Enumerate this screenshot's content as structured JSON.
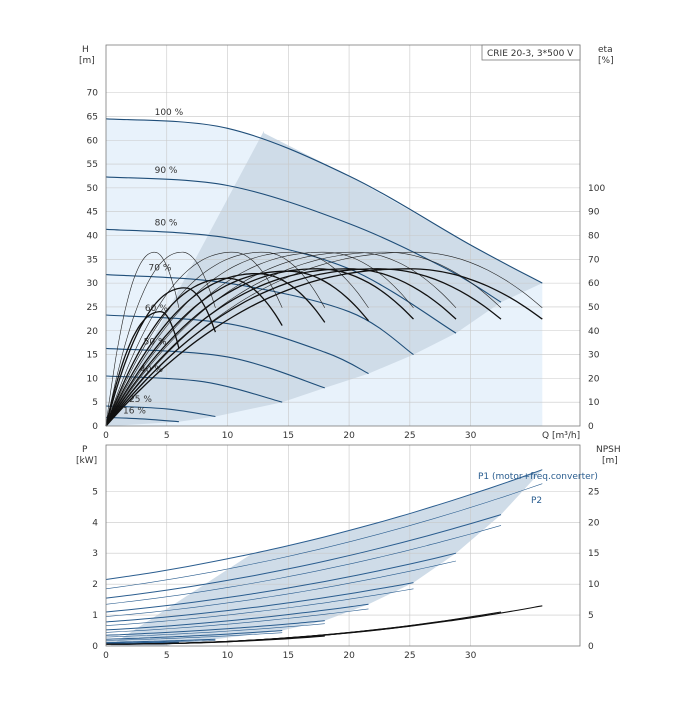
{
  "colors": {
    "curve_dark": "#1f4e79",
    "curve_blue": "#2a5d8f",
    "curve_black": "#111111",
    "region_fill": "#cfdce8",
    "region_light": "#e8f2fb",
    "grid": "#c8c8c8"
  },
  "legend_box": "CRIE 20-3, 3*500 V",
  "chart_data": [
    {
      "type": "line",
      "name": "head-efficiency",
      "ylabel_left": [
        "H",
        "[m]"
      ],
      "ylabel_right": [
        "eta",
        "[%]"
      ],
      "xlabel": "Q [m³/h]",
      "xlim": [
        0,
        39
      ],
      "ylim": [
        0,
        80
      ],
      "xticks": [
        0,
        5,
        10,
        15,
        20,
        25,
        30
      ],
      "yticks_left": [
        0,
        5,
        10,
        15,
        20,
        25,
        30,
        35,
        40,
        45,
        50,
        55,
        60,
        65,
        70
      ],
      "yticks_right": [
        0,
        10,
        20,
        30,
        40,
        50,
        60,
        70,
        80,
        90,
        100
      ],
      "eta_scale": {
        "eta_0_at_H": 0,
        "eta_100_at_H": 50
      },
      "grid": true,
      "head_curves": [
        {
          "label": "100 %",
          "q_max": 35.9,
          "points": [
            [
              0,
              64.5
            ],
            [
              10,
              62.5
            ],
            [
              20,
              52.5
            ],
            [
              30,
              38
            ],
            [
              35.9,
              30
            ]
          ]
        },
        {
          "label": "90 %",
          "q_max": 32.5,
          "points": [
            [
              0,
              52.3
            ],
            [
              10,
              50.5
            ],
            [
              20,
              42.5
            ],
            [
              28,
              33
            ],
            [
              32.5,
              26
            ]
          ]
        },
        {
          "label": "80 %",
          "q_max": 28.8,
          "points": [
            [
              0,
              41.3
            ],
            [
              10,
              39.5
            ],
            [
              20,
              33
            ],
            [
              28.8,
              19.5
            ]
          ]
        },
        {
          "label": "70 %",
          "q_max": 25.3,
          "points": [
            [
              0,
              31.8
            ],
            [
              10,
              30
            ],
            [
              20,
              24
            ],
            [
              25.3,
              15
            ]
          ]
        },
        {
          "label": "60 %",
          "q_max": 21.6,
          "points": [
            [
              0,
              23.3
            ],
            [
              10,
              21.5
            ],
            [
              18,
              15.5
            ],
            [
              21.6,
              11
            ]
          ]
        },
        {
          "label": "50 %",
          "q_max": 18,
          "points": [
            [
              0,
              16.3
            ],
            [
              10,
              14.5
            ],
            [
              18,
              8
            ]
          ]
        },
        {
          "label": "40 %",
          "q_max": 14.5,
          "points": [
            [
              0,
              10.5
            ],
            [
              8,
              9.3
            ],
            [
              14.5,
              5
            ]
          ]
        },
        {
          "label": "25 %",
          "q_max": 9,
          "points": [
            [
              0,
              4.2
            ],
            [
              5,
              3.6
            ],
            [
              9,
              2
            ]
          ]
        },
        {
          "label": "16 %",
          "q_max": 6,
          "points": [
            [
              0,
              1.8
            ],
            [
              3,
              1.5
            ],
            [
              6,
              0.9
            ]
          ]
        }
      ],
      "efficiency_thin_peaks": [
        {
          "q_peak": 4.0,
          "q_end": 6.0,
          "eta_peak": 73
        },
        {
          "q_peak": 6.3,
          "q_end": 9.0,
          "eta_peak": 73
        },
        {
          "q_peak": 10.5,
          "q_end": 14.5,
          "eta_peak": 73
        },
        {
          "q_peak": 13.0,
          "q_end": 18.0,
          "eta_peak": 73
        },
        {
          "q_peak": 15.5,
          "q_end": 21.6,
          "eta_peak": 73
        },
        {
          "q_peak": 18.0,
          "q_end": 25.3,
          "eta_peak": 73
        },
        {
          "q_peak": 20.5,
          "q_end": 28.8,
          "eta_peak": 73
        },
        {
          "q_peak": 23.0,
          "q_end": 32.5,
          "eta_peak": 73
        },
        {
          "q_peak": 25.5,
          "q_end": 35.9,
          "eta_peak": 73
        }
      ],
      "efficiency_bold_peaks": [
        {
          "q_peak": 4.5,
          "q_end": 6.0,
          "eta_peak": 48
        },
        {
          "q_peak": 6.5,
          "q_end": 9.0,
          "eta_peak": 58
        },
        {
          "q_peak": 10.0,
          "q_end": 14.5,
          "eta_peak": 62
        },
        {
          "q_peak": 12.5,
          "q_end": 18.0,
          "eta_peak": 64
        },
        {
          "q_peak": 15.0,
          "q_end": 21.6,
          "eta_peak": 65
        },
        {
          "q_peak": 17.5,
          "q_end": 25.3,
          "eta_peak": 66
        },
        {
          "q_peak": 20.0,
          "q_end": 28.8,
          "eta_peak": 66
        },
        {
          "q_peak": 22.5,
          "q_end": 32.5,
          "eta_peak": 66
        },
        {
          "q_peak": 25.0,
          "q_end": 35.9,
          "eta_peak": 66
        }
      ]
    },
    {
      "type": "line",
      "name": "power-npsh",
      "ylabel_left": [
        "P",
        "[kW]"
      ],
      "ylabel_right": [
        "NPSH",
        "[m]"
      ],
      "xlim": [
        0,
        39
      ],
      "ylim": [
        0,
        6.5
      ],
      "yticks_left": [
        0,
        1,
        2,
        3,
        4,
        5
      ],
      "yticks_right": [
        0,
        5,
        10,
        15,
        20,
        25
      ],
      "npsh_scale": {
        "npsh_per_kw": 5
      },
      "grid": true,
      "series_labels": [
        "P1 (motor+freq.converter)",
        "P2"
      ],
      "p1_curves": [
        {
          "q_max": 35.9,
          "p_start": 2.15,
          "p_end": 5.7
        },
        {
          "q_max": 32.5,
          "p_start": 1.55,
          "p_end": 4.25
        },
        {
          "q_max": 28.8,
          "p_start": 1.1,
          "p_end": 3.0
        },
        {
          "q_max": 25.3,
          "p_start": 0.78,
          "p_end": 2.05
        },
        {
          "q_max": 21.6,
          "p_start": 0.52,
          "p_end": 1.35
        },
        {
          "q_max": 18,
          "p_start": 0.35,
          "p_end": 0.82
        },
        {
          "q_max": 14.5,
          "p_start": 0.22,
          "p_end": 0.5
        },
        {
          "q_max": 9,
          "p_start": 0.12,
          "p_end": 0.22
        },
        {
          "q_max": 6,
          "p_start": 0.08,
          "p_end": 0.13
        }
      ],
      "p2_curves": [
        {
          "q_max": 35.9,
          "p_start": 1.85,
          "p_end": 5.25
        },
        {
          "q_max": 32.5,
          "p_start": 1.35,
          "p_end": 3.9
        },
        {
          "q_max": 28.8,
          "p_start": 0.95,
          "p_end": 2.75
        },
        {
          "q_max": 25.3,
          "p_start": 0.66,
          "p_end": 1.85
        },
        {
          "q_max": 21.6,
          "p_start": 0.44,
          "p_end": 1.2
        },
        {
          "q_max": 18,
          "p_start": 0.29,
          "p_end": 0.72
        },
        {
          "q_max": 14.5,
          "p_start": 0.18,
          "p_end": 0.43
        },
        {
          "q_max": 9,
          "p_start": 0.1,
          "p_end": 0.18
        },
        {
          "q_max": 6,
          "p_start": 0.06,
          "p_end": 0.1
        }
      ],
      "npsh_curves": [
        {
          "q_end": 18.0,
          "npsh_end": 1.6
        },
        {
          "q_end": 21.6,
          "npsh_end": 2.5
        },
        {
          "q_end": 25.3,
          "npsh_end": 3.3
        },
        {
          "q_end": 28.8,
          "npsh_end": 4.3
        },
        {
          "q_end": 32.5,
          "npsh_end": 5.5
        },
        {
          "q_end": 35.9,
          "npsh_end": 6.5
        }
      ]
    }
  ]
}
